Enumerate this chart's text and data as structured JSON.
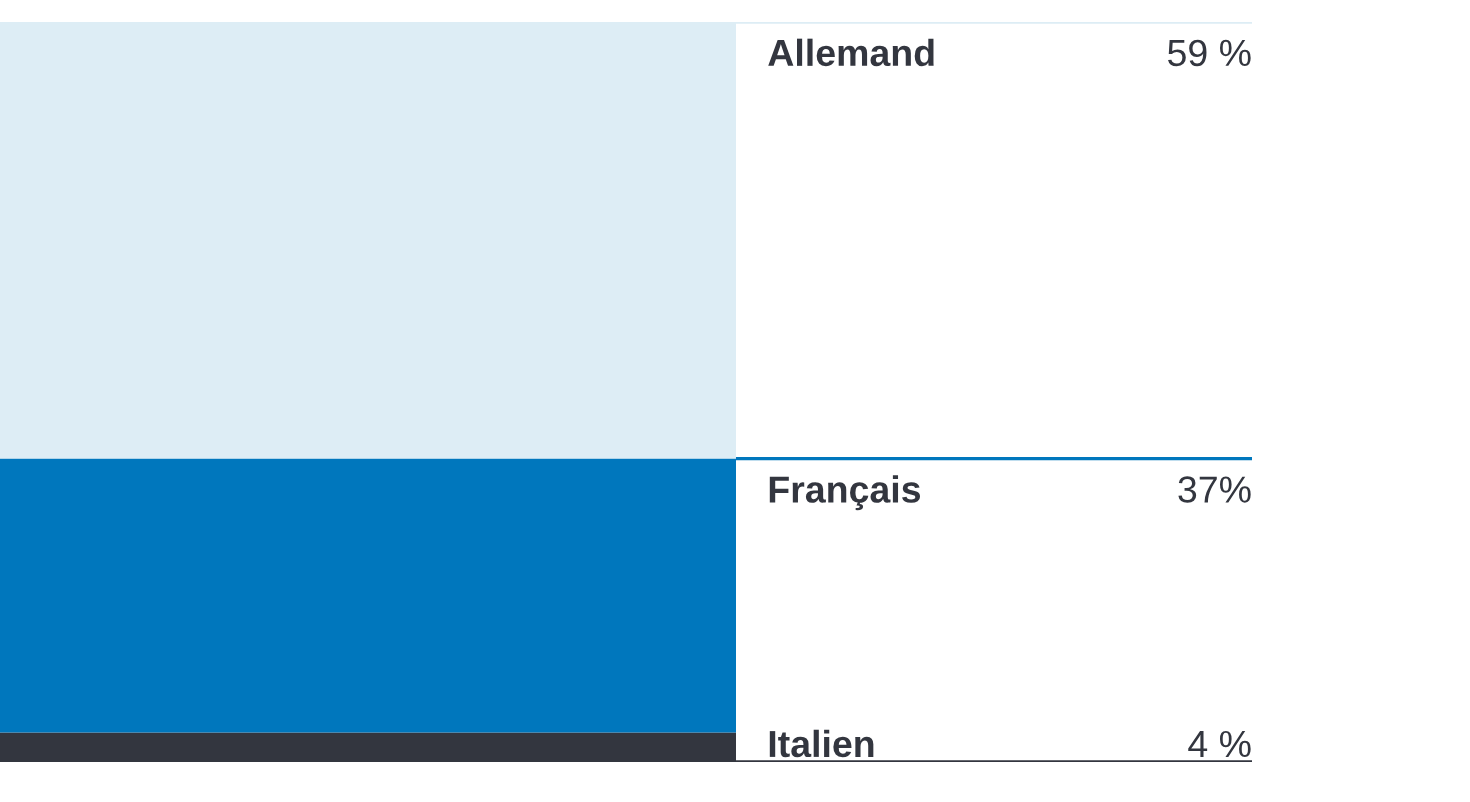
{
  "chart_data": {
    "type": "bar",
    "stacked": true,
    "categories": [
      null
    ],
    "ylim": [
      0,
      100
    ],
    "series": [
      {
        "name": "Italien",
        "color": "#33363f",
        "values": [
          4
        ],
        "value_labels": [
          "4 %"
        ]
      },
      {
        "name": "Français",
        "color": "#0077bd",
        "values": [
          37
        ],
        "value_labels": [
          "37%"
        ]
      },
      {
        "name": "Allemand",
        "color": "#ddedf5",
        "values": [
          59
        ],
        "value_labels": [
          "59 %"
        ]
      }
    ]
  }
}
